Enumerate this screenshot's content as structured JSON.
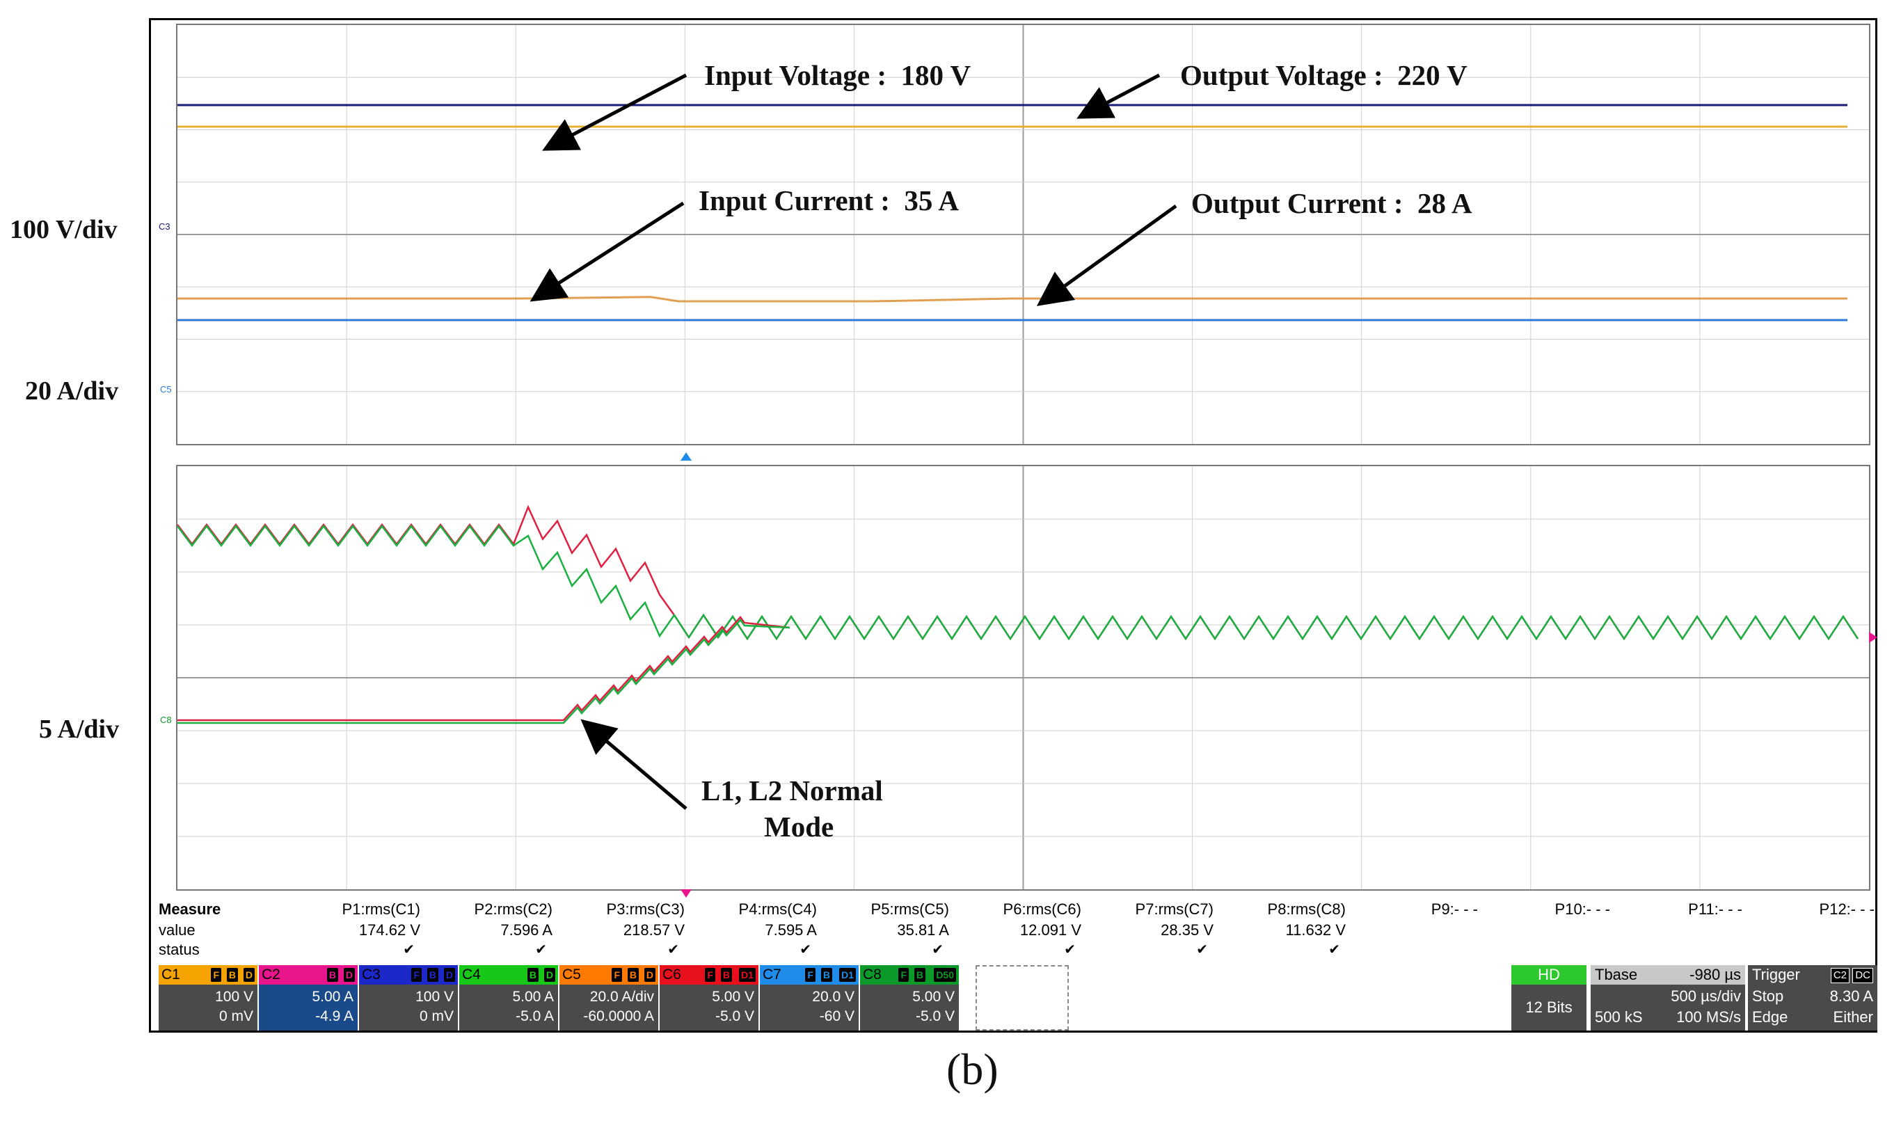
{
  "annotations": {
    "input_voltage": "Input Voltage :  180 V",
    "output_voltage": "Output Voltage :  220 V",
    "input_current": "Input Current :  35 A",
    "output_current": "Output Current :  28 A",
    "normal_mode_line1": "L1, L2 Normal",
    "normal_mode_line2": "Mode"
  },
  "scales": {
    "voltage": "100 V/div",
    "current_top": "20 A/div",
    "current_bottom": "5 A/div"
  },
  "channel_markers": {
    "top_c3": "C3",
    "top_c5": "C5",
    "bottom_c8": "C8"
  },
  "measure": {
    "header": "Measure",
    "row_value_label": "value",
    "row_status_label": "status",
    "params": [
      {
        "name": "P1:rms(C1)",
        "value": "174.62 V",
        "status": "✔"
      },
      {
        "name": "P2:rms(C2)",
        "value": "7.596 A",
        "status": "✔"
      },
      {
        "name": "P3:rms(C3)",
        "value": "218.57 V",
        "status": "✔"
      },
      {
        "name": "P4:rms(C4)",
        "value": "7.595 A",
        "status": "✔"
      },
      {
        "name": "P5:rms(C5)",
        "value": "35.81 A",
        "status": "✔"
      },
      {
        "name": "P6:rms(C6)",
        "value": "12.091 V",
        "status": "✔"
      },
      {
        "name": "P7:rms(C7)",
        "value": "28.35 V",
        "status": "✔"
      },
      {
        "name": "P8:rms(C8)",
        "value": "11.632 V",
        "status": "✔"
      },
      {
        "name": "P9:- - -",
        "value": "",
        "status": ""
      },
      {
        "name": "P10:- - -",
        "value": "",
        "status": ""
      },
      {
        "name": "P11:- - -",
        "value": "",
        "status": ""
      },
      {
        "name": "P12:- - -",
        "value": "",
        "status": ""
      }
    ]
  },
  "channels": [
    {
      "name": "C1",
      "tags": [
        "F",
        "B",
        "D"
      ],
      "color": "#f5a300",
      "scale": "100 V",
      "offset": "0 mV"
    },
    {
      "name": "C2",
      "tags": [
        "B",
        "D"
      ],
      "color": "#e8158c",
      "scale": "5.00 A",
      "offset": "-4.9 A"
    },
    {
      "name": "C3",
      "tags": [
        "F",
        "B",
        "D"
      ],
      "color": "#1c28c8",
      "scale": "100 V",
      "offset": "0 mV"
    },
    {
      "name": "C4",
      "tags": [
        "B",
        "D"
      ],
      "color": "#18c818",
      "scale": "5.00 A",
      "offset": "-5.0 A"
    },
    {
      "name": "C5",
      "tags": [
        "F",
        "B",
        "D"
      ],
      "color": "#ff7a00",
      "scale": "20.0 A/div",
      "offset": "-60.0000 A"
    },
    {
      "name": "C6",
      "tags": [
        "F",
        "B",
        "D1"
      ],
      "color": "#e8101c",
      "scale": "5.00 V",
      "offset": "-5.0 V"
    },
    {
      "name": "C7",
      "tags": [
        "F",
        "B",
        "D1"
      ],
      "color": "#1e8ce8",
      "scale": "20.0 V",
      "offset": "-60 V"
    },
    {
      "name": "C8",
      "tags": [
        "F",
        "B",
        "D50"
      ],
      "color": "#0b9a2a",
      "scale": "5.00 V",
      "offset": "-5.0 V"
    }
  ],
  "hd": {
    "label": "HD",
    "bits": "12 Bits"
  },
  "tbase": {
    "label": "Tbase",
    "delay": "-980 µs",
    "per_div": "500 µs/div",
    "samples": "500 kS",
    "rate": "100 MS/s"
  },
  "trigger": {
    "label": "Trigger",
    "src": "C2",
    "coupling": "DC",
    "mode": "Stop",
    "level": "8.30 A",
    "type": "Edge",
    "slope": "Either"
  },
  "caption": "(b)",
  "colors": {
    "ch_output_voltage": "#1a1a7a",
    "ch_input_voltage": "#e8b030",
    "ch_input_current": "#e0a050",
    "ch_output_current": "#2a7ad8",
    "ch_l1": "#e02040",
    "ch_l2": "#18b040"
  }
}
